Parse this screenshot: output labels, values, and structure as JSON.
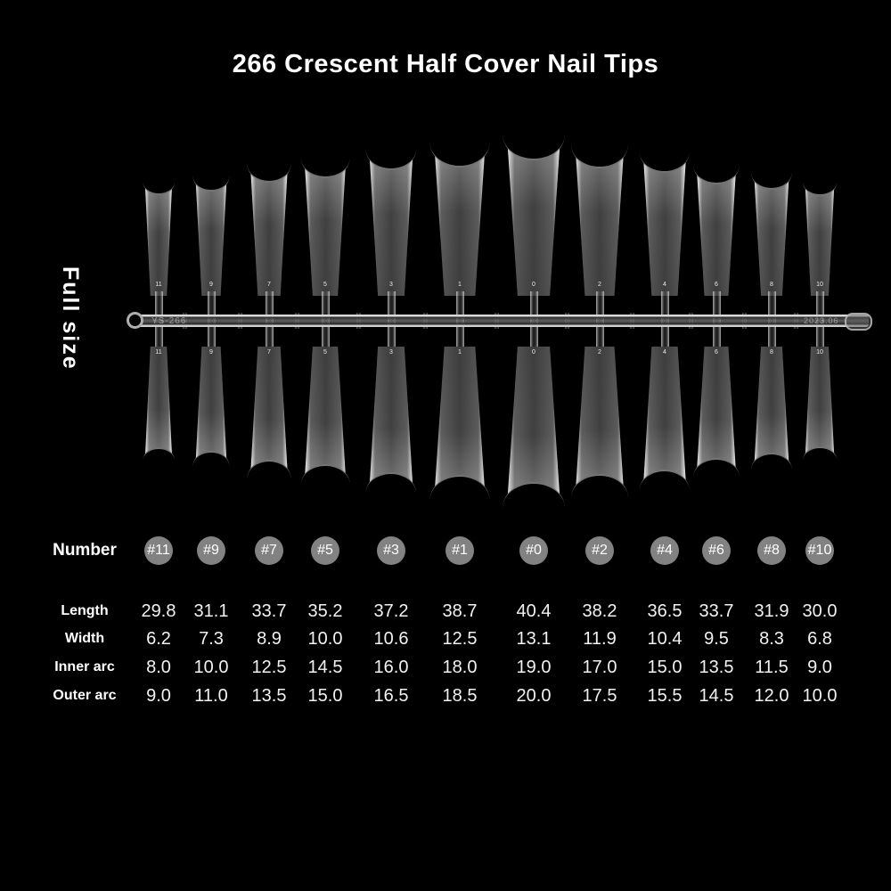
{
  "page_title": "266 Crescent Half Cover Nail Tips",
  "side_label": "Full size",
  "sprue": {
    "model_text": "YS-266",
    "date_text": "2023.06"
  },
  "tips_numbers": [
    "11",
    "9",
    "7",
    "5",
    "3",
    "1",
    "0",
    "2",
    "4",
    "6",
    "8",
    "10"
  ],
  "colors": {
    "background": "#000000",
    "text": "#ffffff",
    "number_circle": "#828282",
    "tip_tint": "#c8c8c8"
  },
  "chart_data": {
    "type": "table",
    "title": "266 Crescent Half Cover Nail Tips",
    "row_header_label": "Number",
    "columns": [
      "#11",
      "#9",
      "#7",
      "#5",
      "#3",
      "#1",
      "#0",
      "#2",
      "#4",
      "#6",
      "#8",
      "#10"
    ],
    "rows": [
      {
        "label": "Length",
        "values": [
          "29.8",
          "31.1",
          "33.7",
          "35.2",
          "37.2",
          "38.7",
          "40.4",
          "38.2",
          "36.5",
          "33.7",
          "31.9",
          "30.0"
        ]
      },
      {
        "label": "Width",
        "values": [
          "6.2",
          "7.3",
          "8.9",
          "10.0",
          "10.6",
          "12.5",
          "13.1",
          "11.9",
          "10.4",
          "9.5",
          "8.3",
          "6.8"
        ]
      },
      {
        "label": "Inner arc",
        "values": [
          "8.0",
          "10.0",
          "12.5",
          "14.5",
          "16.0",
          "18.0",
          "19.0",
          "17.0",
          "15.0",
          "13.5",
          "11.5",
          "9.0"
        ]
      },
      {
        "label": "Outer arc",
        "values": [
          "9.0",
          "11.0",
          "13.5",
          "15.0",
          "16.5",
          "18.5",
          "20.0",
          "17.5",
          "15.5",
          "14.5",
          "12.0",
          "10.0"
        ]
      }
    ]
  }
}
